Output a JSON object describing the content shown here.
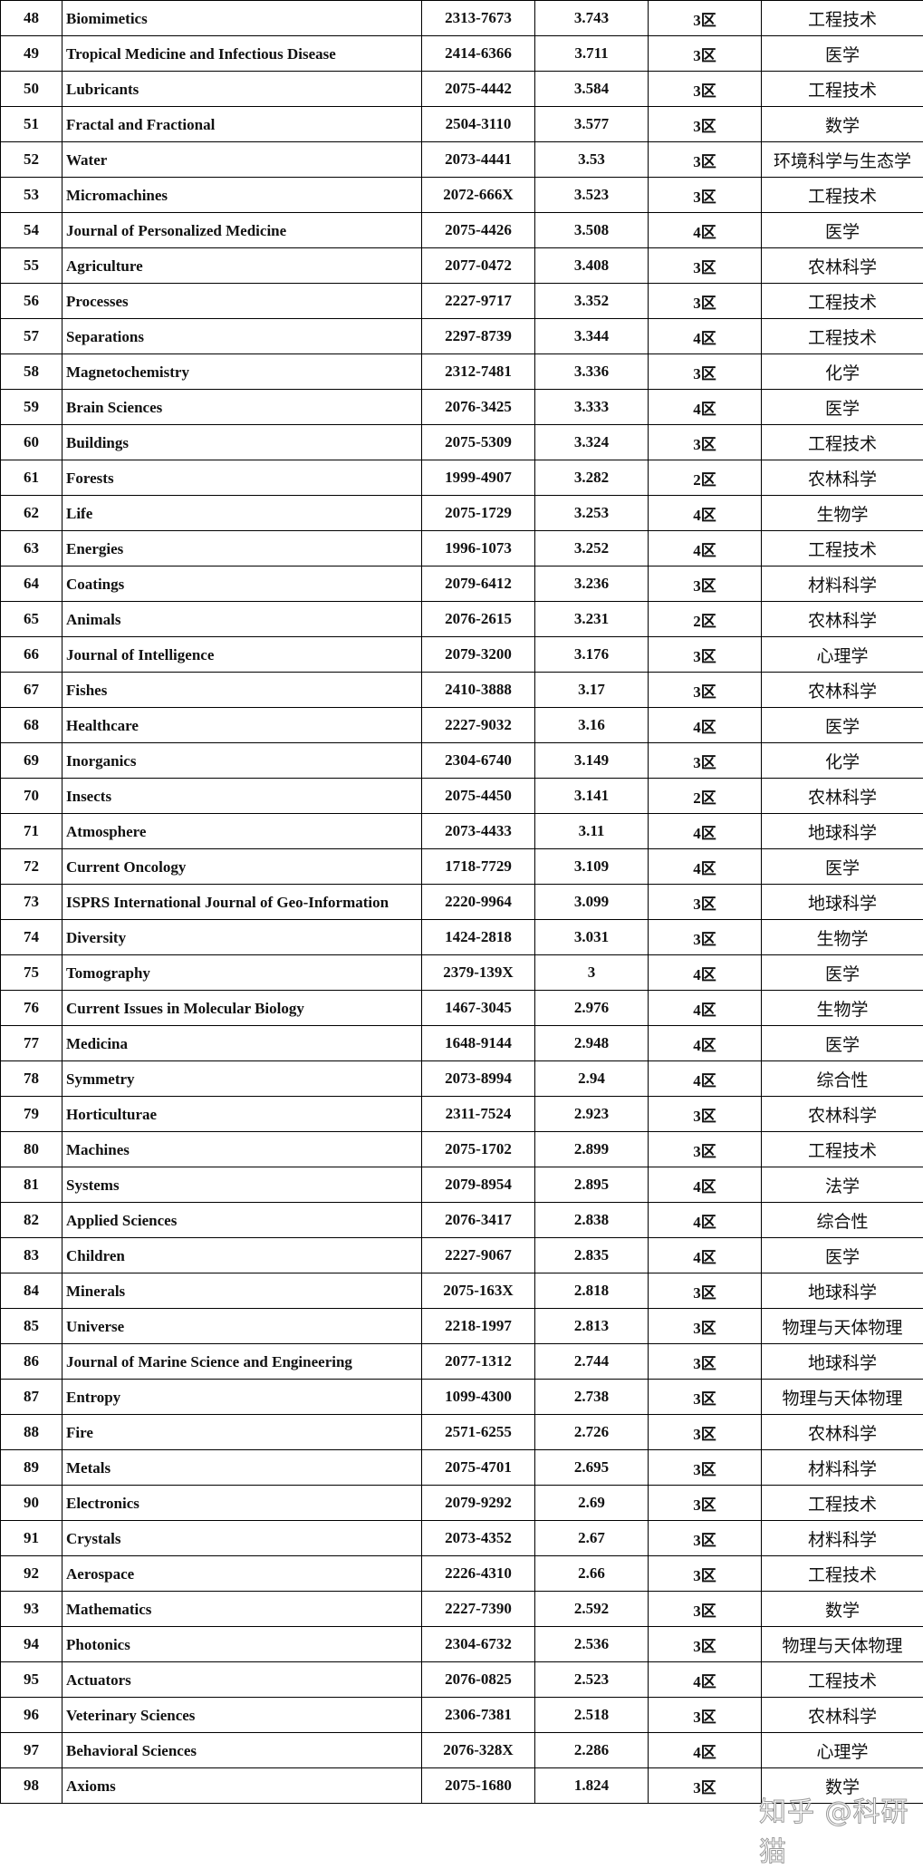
{
  "rows": [
    [
      "48",
      "Biomimetics",
      "2313-7673",
      "3.743",
      "3区",
      "工程技术"
    ],
    [
      "49",
      "Tropical Medicine and Infectious Disease",
      "2414-6366",
      "3.711",
      "3区",
      "医学"
    ],
    [
      "50",
      "Lubricants",
      "2075-4442",
      "3.584",
      "3区",
      "工程技术"
    ],
    [
      "51",
      "Fractal and Fractional",
      "2504-3110",
      "3.577",
      "3区",
      "数学"
    ],
    [
      "52",
      "Water",
      "2073-4441",
      "3.53",
      "3区",
      "环境科学与生态学"
    ],
    [
      "53",
      "Micromachines",
      "2072-666X",
      "3.523",
      "3区",
      "工程技术"
    ],
    [
      "54",
      "Journal of Personalized Medicine",
      "2075-4426",
      "3.508",
      "4区",
      "医学"
    ],
    [
      "55",
      "Agriculture",
      "2077-0472",
      "3.408",
      "3区",
      "农林科学"
    ],
    [
      "56",
      "Processes",
      "2227-9717",
      "3.352",
      "3区",
      "工程技术"
    ],
    [
      "57",
      "Separations",
      "2297-8739",
      "3.344",
      "4区",
      "工程技术"
    ],
    [
      "58",
      "Magnetochemistry",
      "2312-7481",
      "3.336",
      "3区",
      "化学"
    ],
    [
      "59",
      "Brain Sciences",
      "2076-3425",
      "3.333",
      "4区",
      "医学"
    ],
    [
      "60",
      "Buildings",
      "2075-5309",
      "3.324",
      "3区",
      "工程技术"
    ],
    [
      "61",
      "Forests",
      "1999-4907",
      "3.282",
      "2区",
      "农林科学"
    ],
    [
      "62",
      "Life",
      "2075-1729",
      "3.253",
      "4区",
      "生物学"
    ],
    [
      "63",
      "Energies",
      "1996-1073",
      "3.252",
      "4区",
      "工程技术"
    ],
    [
      "64",
      "Coatings",
      "2079-6412",
      "3.236",
      "3区",
      "材料科学"
    ],
    [
      "65",
      "Animals",
      "2076-2615",
      "3.231",
      "2区",
      "农林科学"
    ],
    [
      "66",
      "Journal of Intelligence",
      "2079-3200",
      "3.176",
      "3区",
      "心理学"
    ],
    [
      "67",
      "Fishes",
      "2410-3888",
      "3.17",
      "3区",
      "农林科学"
    ],
    [
      "68",
      "Healthcare",
      "2227-9032",
      "3.16",
      "4区",
      "医学"
    ],
    [
      "69",
      "Inorganics",
      "2304-6740",
      "3.149",
      "3区",
      "化学"
    ],
    [
      "70",
      "Insects",
      "2075-4450",
      "3.141",
      "2区",
      "农林科学"
    ],
    [
      "71",
      "Atmosphere",
      "2073-4433",
      "3.11",
      "4区",
      "地球科学"
    ],
    [
      "72",
      "Current Oncology",
      "1718-7729",
      "3.109",
      "4区",
      "医学"
    ],
    [
      "73",
      "ISPRS International Journal of Geo-Information",
      "2220-9964",
      "3.099",
      "3区",
      "地球科学"
    ],
    [
      "74",
      "Diversity",
      "1424-2818",
      "3.031",
      "3区",
      "生物学"
    ],
    [
      "75",
      "Tomography",
      "2379-139X",
      "3",
      "4区",
      "医学"
    ],
    [
      "76",
      "Current Issues in Molecular Biology",
      "1467-3045",
      "2.976",
      "4区",
      "生物学"
    ],
    [
      "77",
      "Medicina",
      "1648-9144",
      "2.948",
      "4区",
      "医学"
    ],
    [
      "78",
      "Symmetry",
      "2073-8994",
      "2.94",
      "4区",
      "综合性"
    ],
    [
      "79",
      "Horticulturae",
      "2311-7524",
      "2.923",
      "3区",
      "农林科学"
    ],
    [
      "80",
      "Machines",
      "2075-1702",
      "2.899",
      "3区",
      "工程技术"
    ],
    [
      "81",
      "Systems",
      "2079-8954",
      "2.895",
      "4区",
      "法学"
    ],
    [
      "82",
      "Applied Sciences",
      "2076-3417",
      "2.838",
      "4区",
      "综合性"
    ],
    [
      "83",
      "Children",
      "2227-9067",
      "2.835",
      "4区",
      "医学"
    ],
    [
      "84",
      "Minerals",
      "2075-163X",
      "2.818",
      "3区",
      "地球科学"
    ],
    [
      "85",
      "Universe",
      "2218-1997",
      "2.813",
      "3区",
      "物理与天体物理"
    ],
    [
      "86",
      "Journal of Marine Science and Engineering",
      "2077-1312",
      "2.744",
      "3区",
      "地球科学"
    ],
    [
      "87",
      "Entropy",
      "1099-4300",
      "2.738",
      "3区",
      "物理与天体物理"
    ],
    [
      "88",
      "Fire",
      "2571-6255",
      "2.726",
      "3区",
      "农林科学"
    ],
    [
      "89",
      "Metals",
      "2075-4701",
      "2.695",
      "3区",
      "材料科学"
    ],
    [
      "90",
      "Electronics",
      "2079-9292",
      "2.69",
      "3区",
      "工程技术"
    ],
    [
      "91",
      "Crystals",
      "2073-4352",
      "2.67",
      "3区",
      "材料科学"
    ],
    [
      "92",
      "Aerospace",
      "2226-4310",
      "2.66",
      "3区",
      "工程技术"
    ],
    [
      "93",
      "Mathematics",
      "2227-7390",
      "2.592",
      "3区",
      "数学"
    ],
    [
      "94",
      "Photonics",
      "2304-6732",
      "2.536",
      "3区",
      "物理与天体物理"
    ],
    [
      "95",
      "Actuators",
      "2076-0825",
      "2.523",
      "4区",
      "工程技术"
    ],
    [
      "96",
      "Veterinary Sciences",
      "2306-7381",
      "2.518",
      "3区",
      "农林科学"
    ],
    [
      "97",
      "Behavioral Sciences",
      "2076-328X",
      "2.286",
      "4区",
      "心理学"
    ],
    [
      "98",
      "Axioms",
      "2075-1680",
      "1.824",
      "3区",
      "数学"
    ]
  ],
  "watermark": "知乎 @科研猫"
}
